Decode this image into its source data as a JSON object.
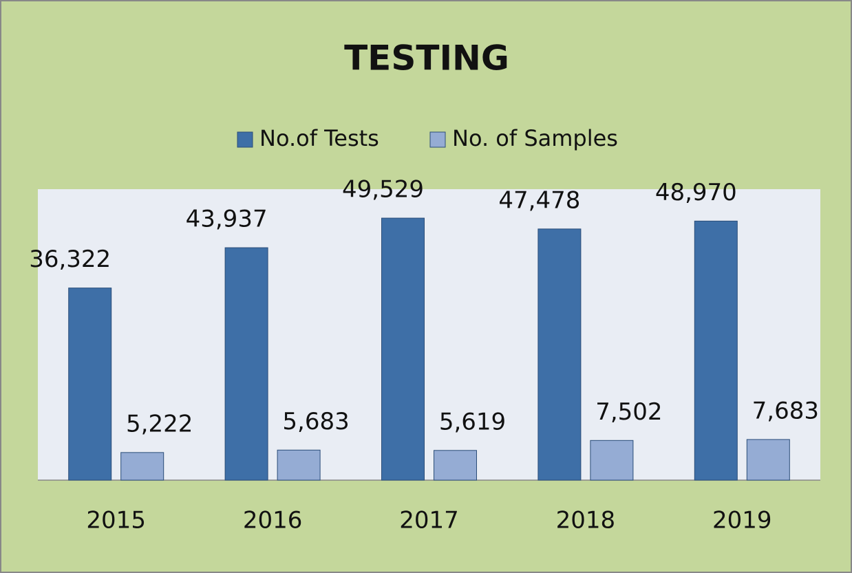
{
  "chart_data": {
    "type": "bar",
    "title": "TESTING",
    "categories": [
      "2015",
      "2016",
      "2017",
      "2018",
      "2019"
    ],
    "series": [
      {
        "name": "No.of Tests",
        "color": "#3e6fa7",
        "values": [
          36322,
          43937,
          49529,
          47478,
          48970
        ],
        "value_labels": [
          "36,322",
          "43,937",
          "49,529",
          "47,478",
          "48,970"
        ]
      },
      {
        "name": "No. of Samples",
        "color": "#95acd4",
        "values": [
          5222,
          5683,
          5619,
          7502,
          7683
        ],
        "value_labels": [
          "5,222",
          "5,683",
          "5,619",
          "7,502",
          "7,683"
        ]
      }
    ],
    "ylim": [
      0,
      55000
    ],
    "legend": "top"
  }
}
